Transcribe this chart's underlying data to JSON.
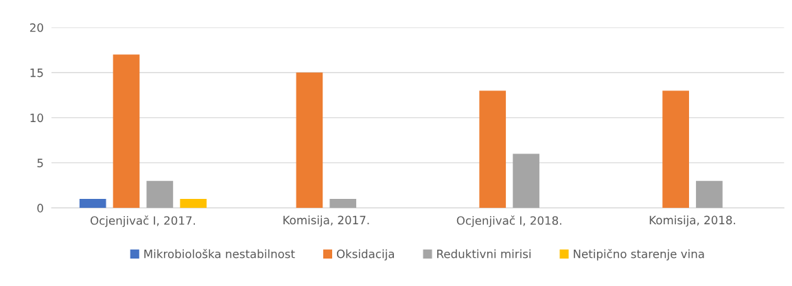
{
  "chart_data": {
    "type": "bar",
    "categories": [
      "Ocjenjivač I, 2017.",
      "Komisija, 2017.",
      "Ocjenjivač I, 2018.",
      "Komisija, 2018."
    ],
    "series": [
      {
        "name": "Mikrobiološka nestabilnost",
        "color": "#4472c4",
        "values": [
          1,
          0,
          0,
          0
        ]
      },
      {
        "name": "Oksidacija",
        "color": "#ed7d31",
        "values": [
          17,
          15,
          13,
          13
        ]
      },
      {
        "name": "Reduktivni mirisi",
        "color": "#a5a5a5",
        "values": [
          3,
          1,
          6,
          3
        ]
      },
      {
        "name": "Netipično starenje vina",
        "color": "#ffc000",
        "values": [
          1,
          0,
          0,
          0
        ]
      }
    ],
    "ylim": [
      0,
      20
    ],
    "yticks": [
      0,
      5,
      10,
      15,
      20
    ],
    "grid": "y",
    "legend": "bottom"
  }
}
